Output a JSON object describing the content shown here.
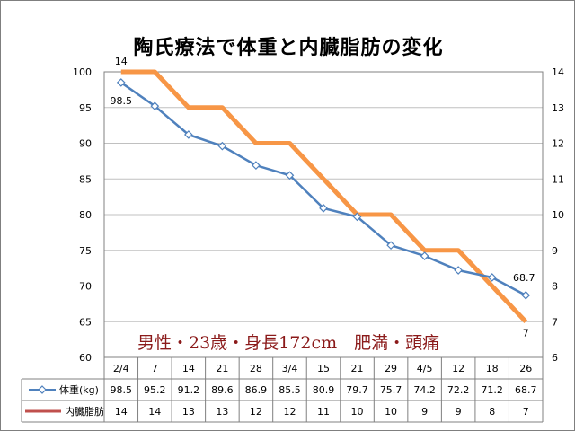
{
  "chart_data": {
    "type": "line",
    "title": "陶氏療法で体重と内臓脂肪の変化",
    "annotation": "男性・23歳・身長172cm　肥満・頭痛",
    "categories": [
      "2/4",
      "7",
      "14",
      "21",
      "28",
      "3/4",
      "15",
      "21",
      "29",
      "4/5",
      "12",
      "18",
      "26"
    ],
    "series": [
      {
        "name": "体重(kg)",
        "axis": "left",
        "color": "#4f81bd",
        "values": [
          98.5,
          95.2,
          91.2,
          89.6,
          86.9,
          85.5,
          80.9,
          79.7,
          75.7,
          74.2,
          72.2,
          71.2,
          68.7
        ],
        "labels": {
          "first": "98.5",
          "last": "68.7"
        }
      },
      {
        "name": "内臓脂肪",
        "axis": "right",
        "color": "#f79646",
        "step": true,
        "values": [
          14,
          14,
          13,
          13,
          12,
          12,
          11,
          10,
          10,
          9,
          9,
          8,
          7
        ],
        "labels": {
          "first": "14",
          "last": "7"
        }
      }
    ],
    "y_left": {
      "min": 60,
      "max": 100,
      "step": 5,
      "ticks": [
        "60",
        "65",
        "70",
        "75",
        "80",
        "85",
        "90",
        "95",
        "100"
      ]
    },
    "y_right": {
      "min": 6,
      "max": 14,
      "step": 1,
      "ticks": [
        "6",
        "7",
        "8",
        "9",
        "10",
        "11",
        "12",
        "13",
        "14"
      ]
    },
    "gridlines": true,
    "data_table": true
  }
}
